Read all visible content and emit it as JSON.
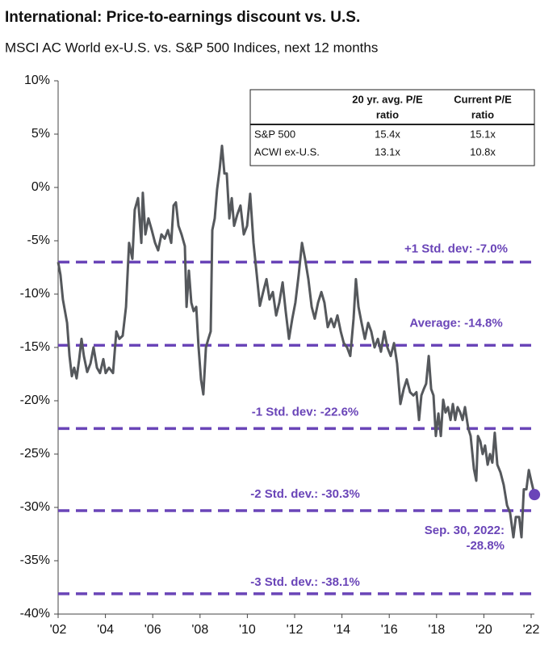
{
  "chart_data": {
    "type": "line",
    "title": "International: Price-to-earnings discount vs. U.S.",
    "subtitle": "MSCI AC World ex-U.S. vs. S&P 500 Indices, next 12 months",
    "xlim": [
      2002,
      2022
    ],
    "xticks": [
      {
        "value": 2002,
        "label": "'02"
      },
      {
        "value": 2004,
        "label": "'04"
      },
      {
        "value": 2006,
        "label": "'06"
      },
      {
        "value": 2008,
        "label": "'08"
      },
      {
        "value": 2010,
        "label": "'10"
      },
      {
        "value": 2012,
        "label": "'12"
      },
      {
        "value": 2014,
        "label": "'14"
      },
      {
        "value": 2016,
        "label": "'16"
      },
      {
        "value": 2018,
        "label": "'18"
      },
      {
        "value": 2020,
        "label": "'20"
      },
      {
        "value": 2022,
        "label": "'22"
      }
    ],
    "ylim": [
      -40,
      10
    ],
    "yticks": [
      {
        "value": 10,
        "label": "10%"
      },
      {
        "value": 5,
        "label": "5%"
      },
      {
        "value": 0,
        "label": "0%"
      },
      {
        "value": -5,
        "label": "-5%"
      },
      {
        "value": -10,
        "label": "-10%"
      },
      {
        "value": -15,
        "label": "-15%"
      },
      {
        "value": -20,
        "label": "-20%"
      },
      {
        "value": -25,
        "label": "-25%"
      },
      {
        "value": -30,
        "label": "-30%"
      },
      {
        "value": -35,
        "label": "-35%"
      },
      {
        "value": -40,
        "label": "-40%"
      }
    ],
    "grid": false,
    "color": "#55585c",
    "x": [
      2002.0,
      2002.1,
      2002.2,
      2002.38,
      2002.48,
      2002.58,
      2002.68,
      2002.78,
      2002.89,
      2002.99,
      2003.09,
      2003.23,
      2003.37,
      2003.5,
      2003.64,
      2003.77,
      2003.91,
      2004.01,
      2004.15,
      2004.32,
      2004.46,
      2004.59,
      2004.73,
      2004.87,
      2005.0,
      2005.14,
      2005.24,
      2005.38,
      2005.52,
      2005.58,
      2005.69,
      2005.82,
      2005.96,
      2006.1,
      2006.23,
      2006.37,
      2006.51,
      2006.64,
      2006.78,
      2006.88,
      2006.98,
      2007.09,
      2007.22,
      2007.36,
      2007.43,
      2007.53,
      2007.63,
      2007.73,
      2007.84,
      2007.94,
      2008.04,
      2008.14,
      2008.25,
      2008.35,
      2008.45,
      2008.52,
      2008.62,
      2008.72,
      2008.83,
      2008.93,
      2009.03,
      2009.13,
      2009.24,
      2009.34,
      2009.44,
      2009.58,
      2009.71,
      2009.85,
      2009.99,
      2010.12,
      2010.26,
      2010.4,
      2010.53,
      2010.67,
      2010.81,
      2010.94,
      2011.08,
      2011.22,
      2011.35,
      2011.49,
      2011.62,
      2011.76,
      2011.9,
      2012.03,
      2012.17,
      2012.31,
      2012.44,
      2012.58,
      2012.72,
      2012.85,
      2012.99,
      2013.13,
      2013.26,
      2013.4,
      2013.54,
      2013.67,
      2013.81,
      2013.95,
      2014.08,
      2014.22,
      2014.35,
      2014.49,
      2014.59,
      2014.7,
      2014.83,
      2014.97,
      2015.11,
      2015.24,
      2015.38,
      2015.52,
      2015.65,
      2015.79,
      2015.92,
      2016.06,
      2016.2,
      2016.33,
      2016.47,
      2016.61,
      2016.74,
      2016.88,
      2017.02,
      2017.15,
      2017.26,
      2017.36,
      2017.46,
      2017.56,
      2017.67,
      2017.77,
      2017.87,
      2017.97,
      2018.08,
      2018.18,
      2018.28,
      2018.38,
      2018.48,
      2018.59,
      2018.69,
      2018.79,
      2018.89,
      2019.0,
      2019.1,
      2019.2,
      2019.34,
      2019.44,
      2019.58,
      2019.68,
      2019.75,
      2019.85,
      2019.95,
      2020.05,
      2020.16,
      2020.26,
      2020.36,
      2020.46,
      2020.57,
      2020.7,
      2020.84,
      2020.98,
      2021.11,
      2021.25,
      2021.35,
      2021.49,
      2021.59,
      2021.69,
      2021.8,
      2021.9,
      2022.0,
      2022.14
    ],
    "values": [
      -7.0,
      -8.2,
      -10.5,
      -12.7,
      -15.8,
      -17.7,
      -16.9,
      -17.9,
      -16.1,
      -14.2,
      -15.8,
      -17.3,
      -16.5,
      -15.0,
      -16.9,
      -17.4,
      -16.1,
      -17.4,
      -16.9,
      -17.4,
      -13.5,
      -14.2,
      -13.9,
      -11.2,
      -5.2,
      -6.7,
      -2.1,
      -1.0,
      -5.2,
      -0.5,
      -4.4,
      -2.9,
      -4.0,
      -5.2,
      -5.9,
      -4.4,
      -4.8,
      -4.0,
      -5.2,
      -1.7,
      -1.4,
      -3.6,
      -4.4,
      -5.5,
      -11.2,
      -7.8,
      -10.8,
      -11.6,
      -11.2,
      -15.0,
      -18.0,
      -19.4,
      -15.0,
      -14.2,
      -13.5,
      -4.0,
      -2.9,
      -0.2,
      1.7,
      3.9,
      1.3,
      1.3,
      -2.9,
      -1.0,
      -3.6,
      -2.5,
      -1.7,
      -4.4,
      -3.6,
      -0.6,
      -5.2,
      -8.2,
      -11.1,
      -9.8,
      -8.6,
      -10.5,
      -9.8,
      -12.0,
      -10.8,
      -8.9,
      -11.6,
      -14.2,
      -12.3,
      -10.8,
      -8.2,
      -5.2,
      -6.7,
      -8.6,
      -11.2,
      -12.3,
      -10.8,
      -9.8,
      -10.8,
      -13.1,
      -12.3,
      -13.1,
      -12.0,
      -13.5,
      -14.6,
      -15.0,
      -15.8,
      -12.3,
      -8.6,
      -11.2,
      -12.7,
      -14.2,
      -12.7,
      -13.5,
      -15.0,
      -14.2,
      -15.4,
      -13.5,
      -15.0,
      -15.8,
      -14.6,
      -16.5,
      -20.3,
      -18.9,
      -18.0,
      -19.2,
      -19.5,
      -19.2,
      -21.8,
      -19.5,
      -18.9,
      -18.4,
      -15.8,
      -18.9,
      -19.5,
      -23.3,
      -21.2,
      -23.3,
      -19.9,
      -21.1,
      -20.6,
      -21.8,
      -20.3,
      -21.8,
      -20.6,
      -21.1,
      -21.8,
      -20.6,
      -22.6,
      -23.3,
      -26.4,
      -27.5,
      -23.3,
      -23.8,
      -25.0,
      -24.2,
      -26.0,
      -25.0,
      -25.8,
      -23.0,
      -26.0,
      -26.7,
      -27.9,
      -29.8,
      -30.5,
      -32.8,
      -30.9,
      -30.9,
      -32.8,
      -28.3,
      -28.3,
      -26.5,
      -27.5,
      -28.8
    ],
    "reference_lines": [
      {
        "value": -7.0,
        "label": "+1 Std. dev: -7.0%"
      },
      {
        "value": -14.8,
        "label": "Average: -14.8%"
      },
      {
        "value": -22.6,
        "label": "-1 Std. dev: -22.6%"
      },
      {
        "value": -30.3,
        "label": "-2 Std. dev.: -30.3%"
      },
      {
        "value": -38.1,
        "label": "-3 Std. dev.: -38.1%"
      }
    ],
    "reference_color": "#6a45b8",
    "annotation": {
      "lines": [
        "Sep. 30, 2022:",
        "-28.8%"
      ]
    },
    "table": {
      "columns": [
        [
          "20 yr. avg. P/E",
          "ratio"
        ],
        [
          "Current P/E",
          "ratio"
        ]
      ],
      "rows": [
        {
          "label": "S&P 500",
          "cells": [
            "15.4x",
            "15.1x"
          ]
        },
        {
          "label": "ACWI ex-U.S.",
          "cells": [
            "13.1x",
            "10.8x"
          ]
        }
      ]
    }
  }
}
